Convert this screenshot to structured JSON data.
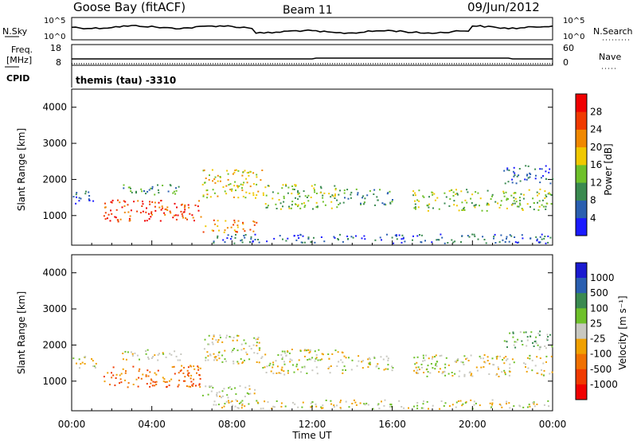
{
  "header": {
    "station": "Goose Bay (fitACF)",
    "beam": "Beam 11",
    "date": "09/Jun/2012"
  },
  "noise_panel": {
    "left_label": "N.Sky",
    "right_label": "N.Search",
    "left_ticks": [
      "10^5",
      "10^0"
    ],
    "right_ticks": [
      "10^5",
      "10^0"
    ]
  },
  "freq_panel": {
    "left_label_line1": "Freq.",
    "left_label_line2": "[MHz]",
    "left_ticks": [
      "18",
      "8"
    ],
    "right_label": "Nave",
    "right_ticks": [
      "60",
      "0"
    ]
  },
  "cpid_panel": {
    "label": "CPID",
    "text": "themis (tau) -3310"
  },
  "chart_data": [
    {
      "type": "heatmap",
      "name": "power",
      "ylabel": "Slant Range [km]",
      "yticks": [
        1000,
        2000,
        3000,
        4000
      ],
      "ylim": [
        180,
        4500
      ],
      "xticks": [
        "00:00",
        "04:00",
        "08:00",
        "12:00",
        "16:00",
        "20:00",
        "00:00"
      ],
      "colorbar_label": "Power [dB]",
      "colorbar_ticks": [
        "4",
        "8",
        "12",
        "16",
        "20",
        "24",
        "28"
      ],
      "colorbar_colors": [
        "#1a1aff",
        "#2a5fb0",
        "#3a8a50",
        "#6ec02a",
        "#f0c800",
        "#f08800",
        "#f03a00",
        "#f00000"
      ],
      "scatter_regions": [
        {
          "t_start": 0.05,
          "t_end": 1.2,
          "r_min": 1300,
          "r_max": 1700,
          "level": 1
        },
        {
          "t_start": 1.5,
          "t_end": 6.5,
          "r_min": 850,
          "r_max": 1450,
          "level": 6
        },
        {
          "t_start": 2.5,
          "t_end": 5.5,
          "r_min": 1600,
          "r_max": 1900,
          "level": 2
        },
        {
          "t_start": 6.5,
          "t_end": 9.5,
          "r_min": 1500,
          "r_max": 2300,
          "level": 4
        },
        {
          "t_start": 6.5,
          "t_end": 9.2,
          "r_min": 550,
          "r_max": 900,
          "level": 5
        },
        {
          "t_start": 9.5,
          "t_end": 13.5,
          "r_min": 1200,
          "r_max": 1900,
          "level": 3
        },
        {
          "t_start": 13.5,
          "t_end": 16.0,
          "r_min": 1300,
          "r_max": 1750,
          "level": 2
        },
        {
          "t_start": 17.0,
          "t_end": 24.0,
          "r_min": 1150,
          "r_max": 1750,
          "level": 3
        },
        {
          "t_start": 21.5,
          "t_end": 24.0,
          "r_min": 1900,
          "r_max": 2400,
          "level": 1
        },
        {
          "t_start": 7.0,
          "t_end": 24.0,
          "r_min": 250,
          "r_max": 500,
          "level": 1
        }
      ]
    },
    {
      "type": "heatmap",
      "name": "velocity",
      "ylabel": "Slant Range [km]",
      "yticks": [
        1000,
        2000,
        3000,
        4000
      ],
      "ylim": [
        180,
        4500
      ],
      "xticks": [
        "00:00",
        "04:00",
        "08:00",
        "12:00",
        "16:00",
        "20:00",
        "00:00"
      ],
      "xlabel": "Time UT",
      "colorbar_label": "Velocity [m s⁻¹]",
      "colorbar_ticks": [
        "1000",
        "500",
        "100",
        "25",
        "-25",
        "-100",
        "-500",
        "-1000"
      ],
      "colorbar_colors": [
        "#1a1ad0",
        "#2a5fb0",
        "#3a8a50",
        "#6ec02a",
        "#c8c8c0",
        "#f0a000",
        "#f07000",
        "#f03a00",
        "#f00000"
      ],
      "scatter_regions": [
        {
          "t_start": 0.05,
          "t_end": 1.2,
          "r_min": 1300,
          "r_max": 1700,
          "level": 4
        },
        {
          "t_start": 1.5,
          "t_end": 6.5,
          "r_min": 850,
          "r_max": 1450,
          "level": 6
        },
        {
          "t_start": 2.5,
          "t_end": 5.5,
          "r_min": 1600,
          "r_max": 1900,
          "level": 4
        },
        {
          "t_start": 6.5,
          "t_end": 9.5,
          "r_min": 1500,
          "r_max": 2300,
          "level": 4
        },
        {
          "t_start": 6.5,
          "t_end": 9.2,
          "r_min": 550,
          "r_max": 900,
          "level": 4
        },
        {
          "t_start": 9.5,
          "t_end": 13.5,
          "r_min": 1200,
          "r_max": 1900,
          "level": 4
        },
        {
          "t_start": 13.5,
          "t_end": 16.0,
          "r_min": 1300,
          "r_max": 1750,
          "level": 4
        },
        {
          "t_start": 17.0,
          "t_end": 24.0,
          "r_min": 1150,
          "r_max": 1750,
          "level": 4
        },
        {
          "t_start": 21.5,
          "t_end": 24.0,
          "r_min": 1900,
          "r_max": 2400,
          "level": 3
        },
        {
          "t_start": 7.0,
          "t_end": 24.0,
          "r_min": 250,
          "r_max": 500,
          "level": 4
        }
      ]
    }
  ]
}
